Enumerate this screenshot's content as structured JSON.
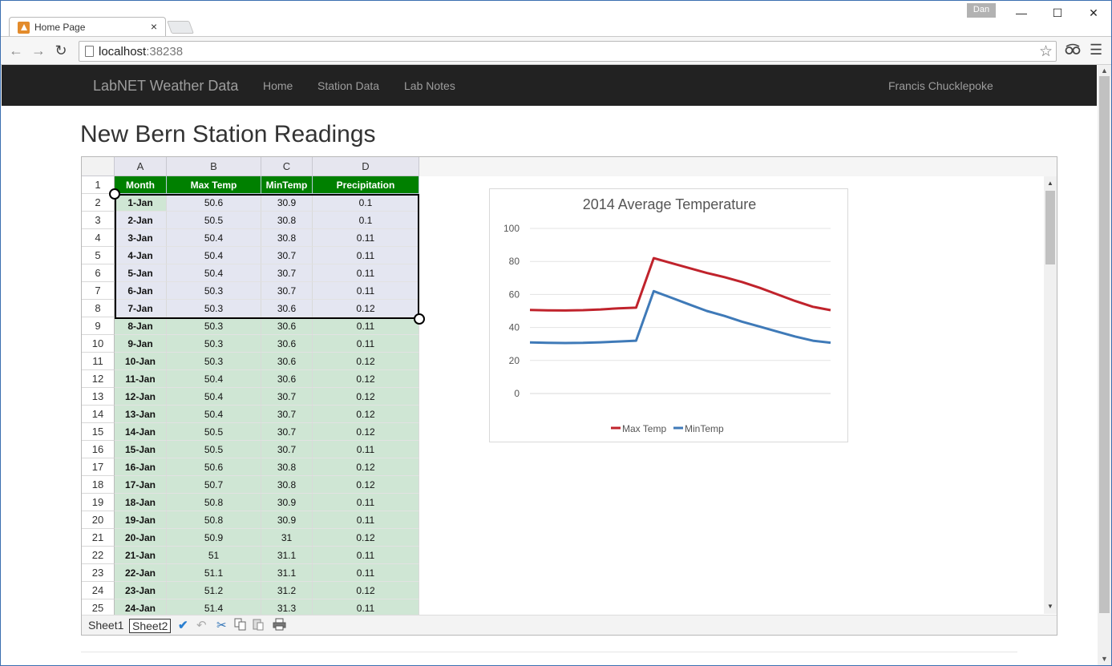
{
  "browser": {
    "tab_title": "Home Page",
    "tab_close": "×",
    "user_badge": "Dan",
    "url_host": "localhost",
    "url_port": ":38238"
  },
  "navbar": {
    "brand": "LabNET Weather Data",
    "links": [
      "Home",
      "Station Data",
      "Lab Notes"
    ],
    "user": "Francis Chucklepoke"
  },
  "page": {
    "title": "New Bern Station Readings"
  },
  "sheet": {
    "columns": [
      "A",
      "B",
      "C",
      "D"
    ],
    "header_row": [
      "Month",
      "Max Temp",
      "MinTemp",
      "Precipitation"
    ],
    "rows": [
      [
        "1-Jan",
        "50.6",
        "30.9",
        "0.1"
      ],
      [
        "2-Jan",
        "50.5",
        "30.8",
        "0.1"
      ],
      [
        "3-Jan",
        "50.4",
        "30.8",
        "0.11"
      ],
      [
        "4-Jan",
        "50.4",
        "30.7",
        "0.11"
      ],
      [
        "5-Jan",
        "50.4",
        "30.7",
        "0.11"
      ],
      [
        "6-Jan",
        "50.3",
        "30.7",
        "0.11"
      ],
      [
        "7-Jan",
        "50.3",
        "30.6",
        "0.12"
      ],
      [
        "8-Jan",
        "50.3",
        "30.6",
        "0.11"
      ],
      [
        "9-Jan",
        "50.3",
        "30.6",
        "0.11"
      ],
      [
        "10-Jan",
        "50.3",
        "30.6",
        "0.12"
      ],
      [
        "11-Jan",
        "50.4",
        "30.6",
        "0.12"
      ],
      [
        "12-Jan",
        "50.4",
        "30.7",
        "0.12"
      ],
      [
        "13-Jan",
        "50.4",
        "30.7",
        "0.12"
      ],
      [
        "14-Jan",
        "50.5",
        "30.7",
        "0.12"
      ],
      [
        "15-Jan",
        "50.5",
        "30.7",
        "0.11"
      ],
      [
        "16-Jan",
        "50.6",
        "30.8",
        "0.12"
      ],
      [
        "17-Jan",
        "50.7",
        "30.8",
        "0.12"
      ],
      [
        "18-Jan",
        "50.8",
        "30.9",
        "0.11"
      ],
      [
        "19-Jan",
        "50.8",
        "30.9",
        "0.11"
      ],
      [
        "20-Jan",
        "50.9",
        "31",
        "0.12"
      ],
      [
        "21-Jan",
        "51",
        "31.1",
        "0.11"
      ],
      [
        "22-Jan",
        "51.1",
        "31.1",
        "0.11"
      ],
      [
        "23-Jan",
        "51.2",
        "31.2",
        "0.12"
      ],
      [
        "24-Jan",
        "51.4",
        "31.3",
        "0.11"
      ]
    ],
    "row_numbers": [
      "1",
      "2",
      "3",
      "4",
      "5",
      "6",
      "7",
      "8",
      "9",
      "10",
      "11",
      "12",
      "13",
      "14",
      "15",
      "16",
      "17",
      "18",
      "19",
      "20",
      "21",
      "22",
      "23",
      "24",
      "25"
    ],
    "tabs": [
      "Sheet1",
      "Sheet2"
    ],
    "active_tab": "Sheet2",
    "colors": {
      "header_bg": "#008000",
      "data_bg": "#cfe6d4",
      "selection_bg": "#e4e6f1"
    }
  },
  "chart_data": {
    "type": "line",
    "title": "2014 Average Temperature",
    "xlabel": "",
    "ylabel": "",
    "ylim": [
      0,
      100
    ],
    "yticks": [
      0,
      20,
      40,
      60,
      80,
      100
    ],
    "grid": true,
    "legend": "bottom",
    "x": [
      1,
      2,
      3,
      4,
      5,
      6,
      7,
      8,
      9,
      10,
      11,
      12,
      13,
      14,
      15,
      16,
      17,
      18
    ],
    "series": [
      {
        "name": "Max Temp",
        "color": "#c0232c",
        "values": [
          50.6,
          50.4,
          50.3,
          50.5,
          50.9,
          51.6,
          52.0,
          82.0,
          79.0,
          76.0,
          73.0,
          70.5,
          67.5,
          64.0,
          60.0,
          56.0,
          52.5,
          50.5
        ]
      },
      {
        "name": "MinTemp",
        "color": "#3f7ab8",
        "values": [
          30.9,
          30.7,
          30.6,
          30.7,
          31.0,
          31.5,
          32.0,
          62.0,
          58.0,
          54.0,
          50.0,
          47.0,
          43.5,
          40.5,
          37.5,
          34.5,
          32.0,
          30.8
        ]
      }
    ]
  }
}
